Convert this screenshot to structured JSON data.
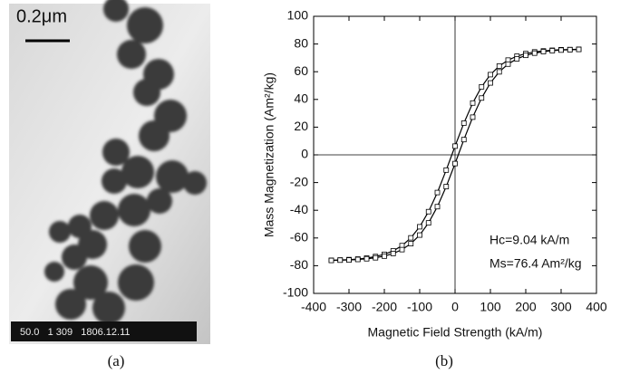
{
  "figure": {
    "scale_label": "0.2μm",
    "info": "50.0   1 309   1806.12.11",
    "caption_a": "(a)",
    "caption_b": "(b)"
  },
  "chart_data": {
    "type": "line",
    "xlabel": "Magnetic Field Strength (kA/m)",
    "ylabel": "Mass Magnetization (Am²/kg)",
    "annotations": [
      "Hc=9.04 kA/m",
      "Ms=76.4 Am²/kg"
    ],
    "x": [
      -350,
      -325,
      -300,
      -275,
      -250,
      -225,
      -200,
      -175,
      -150,
      -125,
      -100,
      -75,
      -50,
      -25,
      0,
      25,
      50,
      75,
      100,
      125,
      150,
      175,
      200,
      225,
      250,
      275,
      300,
      325,
      350
    ],
    "series": [
      {
        "color": "#000000",
        "values": [
          -76.1,
          -75.9,
          -75.6,
          -75.2,
          -74.5,
          -73.4,
          -71.8,
          -69.3,
          -65.5,
          -59.9,
          -51.9,
          -41.0,
          -27.2,
          -11.0,
          6.3,
          22.9,
          37.4,
          49.1,
          57.9,
          64.1,
          68.4,
          71.2,
          73.1,
          74.3,
          75.0,
          75.5,
          75.9,
          76.0,
          76.2
        ]
      },
      {
        "color": "#000000",
        "values": [
          -76.2,
          -76.0,
          -75.9,
          -75.5,
          -75.0,
          -74.3,
          -73.1,
          -71.2,
          -68.4,
          -64.1,
          -57.9,
          -49.1,
          -37.4,
          -22.9,
          -6.3,
          11.0,
          27.2,
          41.0,
          51.9,
          59.9,
          65.5,
          69.3,
          71.8,
          73.4,
          74.5,
          75.2,
          75.6,
          75.9,
          76.1
        ]
      }
    ],
    "xlim": [
      -400,
      400
    ],
    "xticks": [
      -400,
      -300,
      -200,
      -100,
      0,
      100,
      200,
      300,
      400
    ],
    "ylim": [
      -100,
      100
    ],
    "yticks": [
      -100,
      -80,
      -60,
      -40,
      -20,
      0,
      20,
      40,
      60,
      80,
      100
    ],
    "zero_lines": true
  }
}
